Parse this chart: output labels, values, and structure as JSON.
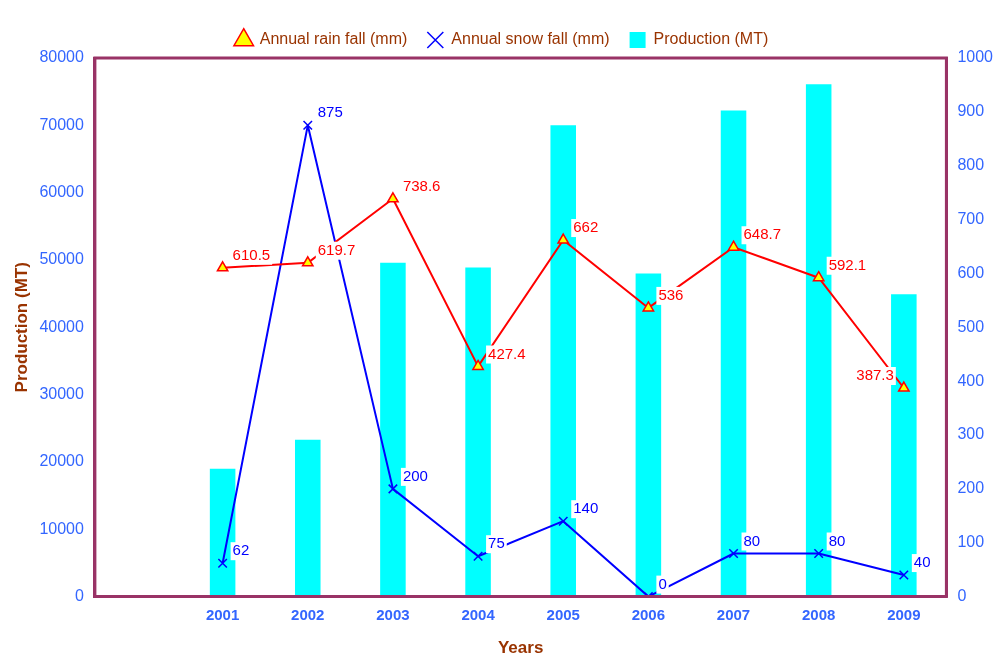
{
  "chart_data": {
    "type": "bar",
    "xlabel": "Years",
    "ylabel": "Production (MT)",
    "categories": [
      null,
      "2001",
      "2002",
      "2003",
      "2004",
      "2005",
      "2006",
      "2007",
      "2008",
      "2009"
    ],
    "series": [
      {
        "name": "Production (MT)",
        "color": "#00ffff",
        "values": [
          null,
          19000,
          23300,
          49600,
          48900,
          70000,
          48000,
          72200,
          76100,
          44900
        ]
      },
      {
        "name": "Annual rain fall (mm)",
        "type": "line",
        "axis": "y2",
        "color": "#ff0000",
        "marker": "triangle",
        "values": [
          null,
          610.5,
          619.7,
          738.6,
          427.4,
          662,
          536,
          648.7,
          592.1,
          387.3
        ],
        "value_labels": [
          null,
          "610.5",
          "619.7",
          "738.6",
          "427.4",
          "662",
          "536",
          "648.7",
          "592.1",
          "387.3"
        ]
      },
      {
        "name": "Annual snow fall (mm)",
        "type": "line",
        "axis": "y2",
        "color": "#0000ff",
        "marker": "cross",
        "values": [
          null,
          62,
          875,
          200,
          75,
          140,
          0,
          80,
          80,
          40
        ],
        "value_labels": [
          null,
          "62",
          "875",
          "200",
          "75",
          "140",
          "0",
          "80",
          "80",
          "40"
        ]
      }
    ],
    "ylim": [
      0,
      80000
    ],
    "yticks": [
      0,
      10000,
      20000,
      30000,
      40000,
      50000,
      60000,
      70000,
      80000
    ],
    "y2lim": [
      0,
      1000
    ],
    "y2ticks": [
      0,
      100,
      200,
      300,
      400,
      500,
      600,
      700,
      800,
      900,
      1000
    ],
    "grid": false,
    "legend": "top"
  }
}
